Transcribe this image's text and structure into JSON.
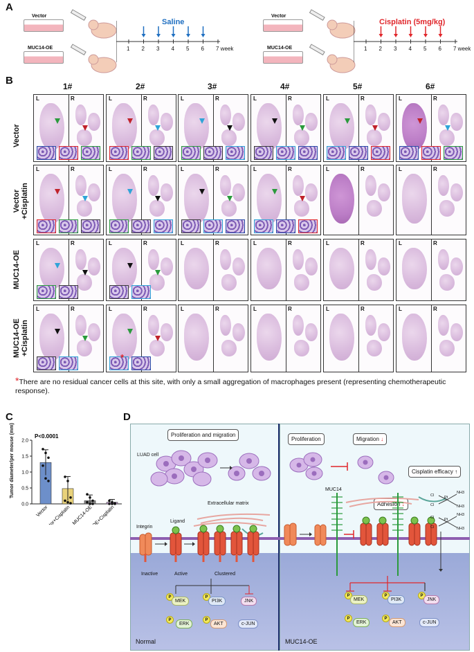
{
  "panelA": {
    "letter": "A",
    "left": {
      "dish_top": "Vector",
      "dish_bottom": "MUC14-OE",
      "treatment": "Saline",
      "treatment_color": "#1f6fc1",
      "ticks": [
        "1",
        "2",
        "3",
        "4",
        "5",
        "6",
        "7 week"
      ],
      "arrow_weeks": [
        2,
        3,
        4,
        5,
        6
      ]
    },
    "right": {
      "dish_top": "Vector",
      "dish_bottom": "MUC14-OE",
      "treatment": "Cisplatin (5mg/kg)",
      "treatment_color": "#e0262b",
      "ticks": [
        "1",
        "2",
        "3",
        "4",
        "5",
        "6",
        "7 week"
      ],
      "arrow_weeks": [
        2,
        3,
        4,
        5,
        6
      ]
    }
  },
  "panelB": {
    "letter": "B",
    "columns": [
      "1#",
      "2#",
      "3#",
      "4#",
      "5#",
      "6#"
    ],
    "rows": [
      "Vector",
      "Vector\n+Cisplatin",
      "MUC14-OE",
      "MUC14-OE\n+Cisplatin"
    ],
    "lobe_left": "L",
    "lobe_right": "R",
    "inset_star": "*",
    "footnote_star": "*",
    "footnote": "There are no residual cancer cells at this site, with only a small aggregation of macrophages present (representing chemotherapeutic response)."
  },
  "panelC": {
    "letter": "C",
    "chart_data": {
      "type": "bar",
      "title": "",
      "ylabel": "Tumor diameter/per mouse (mm)",
      "xlabel": "",
      "categories": [
        "Vector",
        "Vector+Cisplatin",
        "MUC14-OE",
        "MUC14-OE+Cisplatin"
      ],
      "values": [
        1.3,
        0.48,
        0.1,
        0.05
      ],
      "errors": [
        0.4,
        0.38,
        0.18,
        0.09
      ],
      "points": [
        [
          1.72,
          1.6,
          1.45,
          1.2,
          0.8,
          0.72
        ],
        [
          0.85,
          0.72,
          0.2,
          0.1,
          0.05,
          0.02
        ],
        [
          0.3,
          0.2,
          0.1,
          0.05,
          0,
          0
        ],
        [
          0.1,
          0.05,
          0.02,
          0,
          0,
          0
        ]
      ],
      "ylim": [
        0,
        2.0
      ],
      "yticks": [
        "0.0",
        "0.5",
        "1.0",
        "1.5",
        "2.0"
      ],
      "annotation": "P<0.0001",
      "bar_colors": [
        "#6d8fca",
        "#e9d27a",
        "#8b8b8b",
        "#c9a2d6"
      ]
    }
  },
  "panelD": {
    "letter": "D",
    "left": {
      "title_box": "Proliferation and migration",
      "cell_label": "LUAD cell",
      "ecm": "Extracellular matrix",
      "integrin": "Integrin",
      "ligand": "Ligand",
      "states": [
        "Inactive",
        "Active",
        "Clustered"
      ],
      "nodes_top": [
        "MEK",
        "PI3K",
        "JNK"
      ],
      "nodes_bottom": [
        "ERK",
        "AKT",
        "c-JUN"
      ],
      "p_label": "P",
      "corner": "Normal"
    },
    "right": {
      "box_prolif": "Proliferation",
      "box_migration": "Migration",
      "box_cisplatin": "Cisplatin efficacy",
      "box_adhesion": "Adhesion",
      "muc14": "MUC14",
      "nodes_top": [
        "MEK",
        "PI3K",
        "JNK"
      ],
      "nodes_bottom": [
        "ERK",
        "AKT",
        "c-JUN"
      ],
      "p_label": "P",
      "corner": "MUC14-OE",
      "chem": [
        "Cl",
        "Pt",
        "NH3",
        "Cl",
        "NH3"
      ]
    }
  }
}
